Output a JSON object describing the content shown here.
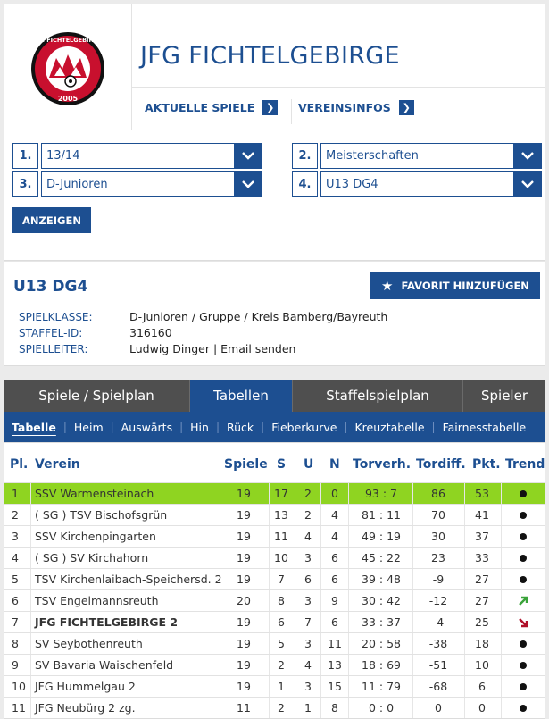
{
  "header": {
    "title": "JFG FICHTELGEBIRGE",
    "logo_text_top": "JFG FICHTELGEBIRGE",
    "logo_year": "2005",
    "links": [
      {
        "label": "AKTUELLE SPIELE",
        "icon": "chevron-right-icon"
      },
      {
        "label": "VEREINSINFOS",
        "icon": "chevron-right-icon"
      }
    ]
  },
  "filters": {
    "selects": [
      {
        "num": "1.",
        "value": "13/14"
      },
      {
        "num": "2.",
        "value": "Meisterschaften"
      },
      {
        "num": "3.",
        "value": "D-Junioren"
      },
      {
        "num": "4.",
        "value": "U13 DG4"
      }
    ],
    "show_button": "ANZEIGEN"
  },
  "league": {
    "name": "U13 DG4",
    "favorite_button": "FAVORIT HINZUFÜGEN",
    "info": [
      {
        "label": "SPIELKLASSE:",
        "value": "D-Junioren / Gruppe / Kreis Bamberg/Bayreuth"
      },
      {
        "label": "STAFFEL-ID:",
        "value": "316160"
      },
      {
        "label": "SPIELLEITER:",
        "value": "Ludwig Dinger | Email senden"
      }
    ]
  },
  "tabs": [
    "Spiele / Spielplan",
    "Tabellen",
    "Staffelspielplan",
    "Spieler"
  ],
  "active_tab": "Tabellen",
  "subtabs": [
    "Tabelle",
    "Heim",
    "Auswärts",
    "Hin",
    "Rück",
    "Fieberkurve",
    "Kreuztabelle",
    "Fairnesstabelle"
  ],
  "table": {
    "headers": {
      "pl": "Pl.",
      "verein": "Verein",
      "spiele": "Spiele",
      "s": "S",
      "u": "U",
      "n": "N",
      "torverh": "Torverh.",
      "tordiff": "Tordiff.",
      "pkt": "Pkt.",
      "trend": "Trend"
    },
    "rows": [
      {
        "pl": "1",
        "verein": "SSV Warmensteinach",
        "spiele": "19",
        "s": "17",
        "u": "2",
        "n": "0",
        "torverh": "93 : 7",
        "tordiff": "86",
        "pkt": "53",
        "trend": "same"
      },
      {
        "pl": "2",
        "verein": "( SG ) TSV Bischofsgrün",
        "spiele": "19",
        "s": "13",
        "u": "2",
        "n": "4",
        "torverh": "81 : 11",
        "tordiff": "70",
        "pkt": "41",
        "trend": "same"
      },
      {
        "pl": "3",
        "verein": "SSV Kirchenpingarten",
        "spiele": "19",
        "s": "11",
        "u": "4",
        "n": "4",
        "torverh": "49 : 19",
        "tordiff": "30",
        "pkt": "37",
        "trend": "same"
      },
      {
        "pl": "4",
        "verein": "( SG ) SV Kirchahorn",
        "spiele": "19",
        "s": "10",
        "u": "3",
        "n": "6",
        "torverh": "45 : 22",
        "tordiff": "23",
        "pkt": "33",
        "trend": "same"
      },
      {
        "pl": "5",
        "verein": "TSV Kirchenlaibach-Speichersd. 2",
        "spiele": "19",
        "s": "7",
        "u": "6",
        "n": "6",
        "torverh": "39 : 48",
        "tordiff": "-9",
        "pkt": "27",
        "trend": "same"
      },
      {
        "pl": "6",
        "verein": "TSV Engelmannsreuth",
        "spiele": "20",
        "s": "8",
        "u": "3",
        "n": "9",
        "torverh": "30 : 42",
        "tordiff": "-12",
        "pkt": "27",
        "trend": "up"
      },
      {
        "pl": "7",
        "verein": "JFG FICHTELGEBIRGE 2",
        "spiele": "19",
        "s": "6",
        "u": "7",
        "n": "6",
        "torverh": "33 : 37",
        "tordiff": "-4",
        "pkt": "25",
        "trend": "down"
      },
      {
        "pl": "8",
        "verein": "SV Seybothenreuth",
        "spiele": "19",
        "s": "5",
        "u": "3",
        "n": "11",
        "torverh": "20 : 58",
        "tordiff": "-38",
        "pkt": "18",
        "trend": "same"
      },
      {
        "pl": "9",
        "verein": "SV Bavaria Waischenfeld",
        "spiele": "19",
        "s": "2",
        "u": "4",
        "n": "13",
        "torverh": "18 : 69",
        "tordiff": "-51",
        "pkt": "10",
        "trend": "same"
      },
      {
        "pl": "10",
        "verein": "JFG Hummelgau 2",
        "spiele": "19",
        "s": "1",
        "u": "3",
        "n": "15",
        "torverh": "11 : 79",
        "tordiff": "-68",
        "pkt": "6",
        "trend": "same"
      },
      {
        "pl": "11",
        "verein": "JFG Neubürg 2 zg.",
        "spiele": "11",
        "s": "2",
        "u": "1",
        "n": "8",
        "torverh": "0 : 0",
        "tordiff": "0",
        "pkt": "0",
        "trend": "same"
      }
    ]
  },
  "colors": {
    "brand": "#1d4f91",
    "highlight": "#8fd421",
    "trend_up": "#3aa33a",
    "trend_down": "#b0102a"
  }
}
